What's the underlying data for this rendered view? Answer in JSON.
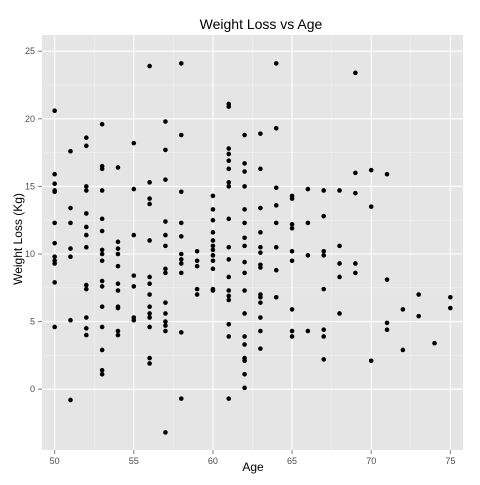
{
  "chart_data": {
    "type": "scatter",
    "title": "Weight Loss vs Age",
    "xlabel": "Age",
    "ylabel": "Weight Loss (Kg)",
    "xlim": [
      49.2,
      75.8
    ],
    "ylim": [
      -4.5,
      26.2
    ],
    "x_ticks": [
      50,
      55,
      60,
      65,
      70,
      75
    ],
    "y_ticks": [
      0,
      5,
      10,
      15,
      20,
      25
    ],
    "grid": true,
    "legend": "none",
    "colors": {
      "panel": "#e5e5e5",
      "grid_major": "#ffffff",
      "grid_minor": "#f2f2f2",
      "point": "#000000",
      "tick_label": "#4d4d4d"
    },
    "points": [
      [
        50,
        20.6
      ],
      [
        50,
        15.9
      ],
      [
        50,
        15.2
      ],
      [
        50,
        14.7
      ],
      [
        50,
        14.6
      ],
      [
        50,
        12.3
      ],
      [
        50,
        10.8
      ],
      [
        50,
        9.8
      ],
      [
        50,
        9.5
      ],
      [
        50,
        9.3
      ],
      [
        50,
        7.9
      ],
      [
        50,
        4.6
      ],
      [
        51,
        17.6
      ],
      [
        51,
        13.4
      ],
      [
        51,
        12.3
      ],
      [
        51,
        10.4
      ],
      [
        51,
        9.8
      ],
      [
        51,
        5.1
      ],
      [
        51,
        -0.8
      ],
      [
        52,
        18.6
      ],
      [
        52,
        18.0
      ],
      [
        52,
        15.0
      ],
      [
        52,
        14.7
      ],
      [
        52,
        13.0
      ],
      [
        52,
        12.0
      ],
      [
        52,
        11.4
      ],
      [
        52,
        10.5
      ],
      [
        52,
        7.7
      ],
      [
        52,
        7.4
      ],
      [
        52,
        5.3
      ],
      [
        52,
        4.5
      ],
      [
        52,
        4.0
      ],
      [
        53,
        19.6
      ],
      [
        53,
        16.5
      ],
      [
        53,
        16.3
      ],
      [
        53,
        14.7
      ],
      [
        53,
        12.6
      ],
      [
        53,
        11.7
      ],
      [
        53,
        10.3
      ],
      [
        53,
        10.0
      ],
      [
        53,
        9.5
      ],
      [
        53,
        8.0
      ],
      [
        53,
        7.6
      ],
      [
        53,
        6.1
      ],
      [
        53,
        4.6
      ],
      [
        53,
        2.9
      ],
      [
        53,
        1.4
      ],
      [
        53,
        1.1
      ],
      [
        54,
        16.4
      ],
      [
        54,
        10.9
      ],
      [
        54,
        10.4
      ],
      [
        54,
        10.0
      ],
      [
        54,
        9.1
      ],
      [
        54,
        7.8
      ],
      [
        54,
        7.3
      ],
      [
        54,
        6.1
      ],
      [
        54,
        6.0
      ],
      [
        54,
        4.3
      ],
      [
        54,
        4.0
      ],
      [
        55,
        18.2
      ],
      [
        55,
        14.8
      ],
      [
        55,
        11.4
      ],
      [
        55,
        8.4
      ],
      [
        55,
        7.6
      ],
      [
        55,
        5.3
      ],
      [
        55,
        5.1
      ],
      [
        56,
        23.9
      ],
      [
        56,
        15.3
      ],
      [
        56,
        14.1
      ],
      [
        56,
        13.7
      ],
      [
        56,
        11.0
      ],
      [
        56,
        8.3
      ],
      [
        56,
        7.8
      ],
      [
        56,
        7.0
      ],
      [
        56,
        6.1
      ],
      [
        56,
        5.6
      ],
      [
        56,
        5.3
      ],
      [
        56,
        4.6
      ],
      [
        56,
        2.3
      ],
      [
        56,
        1.9
      ],
      [
        57,
        19.8
      ],
      [
        57,
        17.7
      ],
      [
        57,
        15.5
      ],
      [
        57,
        12.4
      ],
      [
        57,
        11.4
      ],
      [
        57,
        10.6
      ],
      [
        57,
        8.9
      ],
      [
        57,
        8.6
      ],
      [
        57,
        6.4
      ],
      [
        57,
        5.6
      ],
      [
        57,
        5.0
      ],
      [
        57,
        4.7
      ],
      [
        57,
        4.3
      ],
      [
        57,
        -3.2
      ],
      [
        58,
        24.1
      ],
      [
        58,
        18.8
      ],
      [
        58,
        14.6
      ],
      [
        58,
        12.3
      ],
      [
        58,
        11.3
      ],
      [
        58,
        10.0
      ],
      [
        58,
        9.6
      ],
      [
        58,
        9.3
      ],
      [
        58,
        8.6
      ],
      [
        58,
        4.2
      ],
      [
        58,
        -0.7
      ],
      [
        59,
        10.2
      ],
      [
        59,
        9.5
      ],
      [
        59,
        9.1
      ],
      [
        59,
        7.4
      ],
      [
        59,
        7.0
      ],
      [
        60,
        14.3
      ],
      [
        60,
        13.3
      ],
      [
        60,
        12.5
      ],
      [
        60,
        11.6
      ],
      [
        60,
        11.0
      ],
      [
        60,
        10.6
      ],
      [
        60,
        10.3
      ],
      [
        60,
        9.9
      ],
      [
        60,
        9.5
      ],
      [
        60,
        8.9
      ],
      [
        60,
        7.4
      ],
      [
        60,
        7.3
      ],
      [
        61,
        21.1
      ],
      [
        61,
        20.9
      ],
      [
        61,
        17.8
      ],
      [
        61,
        17.4
      ],
      [
        61,
        16.9
      ],
      [
        61,
        16.3
      ],
      [
        61,
        15.3
      ],
      [
        61,
        15.0
      ],
      [
        61,
        12.6
      ],
      [
        61,
        10.5
      ],
      [
        61,
        9.6
      ],
      [
        61,
        8.3
      ],
      [
        61,
        7.3
      ],
      [
        61,
        6.9
      ],
      [
        61,
        6.6
      ],
      [
        61,
        4.8
      ],
      [
        61,
        3.9
      ],
      [
        61,
        -0.7
      ],
      [
        62,
        18.8
      ],
      [
        62,
        16.7
      ],
      [
        62,
        16.1
      ],
      [
        62,
        15.0
      ],
      [
        62,
        13.3
      ],
      [
        62,
        12.3
      ],
      [
        62,
        11.2
      ],
      [
        62,
        10.6
      ],
      [
        62,
        9.4
      ],
      [
        62,
        8.6
      ],
      [
        62,
        7.3
      ],
      [
        62,
        5.6
      ],
      [
        62,
        3.9
      ],
      [
        62,
        3.3
      ],
      [
        62,
        2.3
      ],
      [
        62,
        2.1
      ],
      [
        62,
        1.1
      ],
      [
        62,
        0.1
      ],
      [
        63,
        18.9
      ],
      [
        63,
        16.3
      ],
      [
        63,
        13.4
      ],
      [
        63,
        11.6
      ],
      [
        63,
        10.5
      ],
      [
        63,
        10.1
      ],
      [
        63,
        9.2
      ],
      [
        63,
        9.0
      ],
      [
        63,
        7.0
      ],
      [
        63,
        6.8
      ],
      [
        63,
        6.4
      ],
      [
        63,
        5.3
      ],
      [
        63,
        4.3
      ],
      [
        63,
        3.0
      ],
      [
        64,
        24.1
      ],
      [
        64,
        19.3
      ],
      [
        64,
        14.9
      ],
      [
        64,
        13.6
      ],
      [
        64,
        12.3
      ],
      [
        64,
        10.5
      ],
      [
        64,
        8.8
      ],
      [
        64,
        6.8
      ],
      [
        65,
        14.3
      ],
      [
        65,
        14.1
      ],
      [
        65,
        12.2
      ],
      [
        65,
        11.9
      ],
      [
        65,
        10.2
      ],
      [
        65,
        9.5
      ],
      [
        65,
        5.9
      ],
      [
        65,
        4.3
      ],
      [
        65,
        3.9
      ],
      [
        66,
        14.8
      ],
      [
        66,
        12.3
      ],
      [
        66,
        9.9
      ],
      [
        66,
        4.3
      ],
      [
        67,
        14.7
      ],
      [
        67,
        12.8
      ],
      [
        67,
        10.2
      ],
      [
        67,
        9.9
      ],
      [
        67,
        7.4
      ],
      [
        67,
        4.4
      ],
      [
        67,
        3.9
      ],
      [
        67,
        2.2
      ],
      [
        68,
        14.7
      ],
      [
        68,
        10.6
      ],
      [
        68,
        9.3
      ],
      [
        68,
        8.3
      ],
      [
        68,
        5.6
      ],
      [
        69,
        23.4
      ],
      [
        69,
        16.0
      ],
      [
        69,
        14.5
      ],
      [
        69,
        9.3
      ],
      [
        69,
        8.6
      ],
      [
        70,
        16.2
      ],
      [
        70,
        13.5
      ],
      [
        70,
        2.1
      ],
      [
        71,
        15.9
      ],
      [
        71,
        8.1
      ],
      [
        71,
        4.9
      ],
      [
        71,
        4.4
      ],
      [
        72,
        5.9
      ],
      [
        72,
        2.9
      ],
      [
        73,
        7.0
      ],
      [
        73,
        5.4
      ],
      [
        74,
        3.4
      ],
      [
        75,
        6.8
      ],
      [
        75,
        6.0
      ]
    ]
  }
}
